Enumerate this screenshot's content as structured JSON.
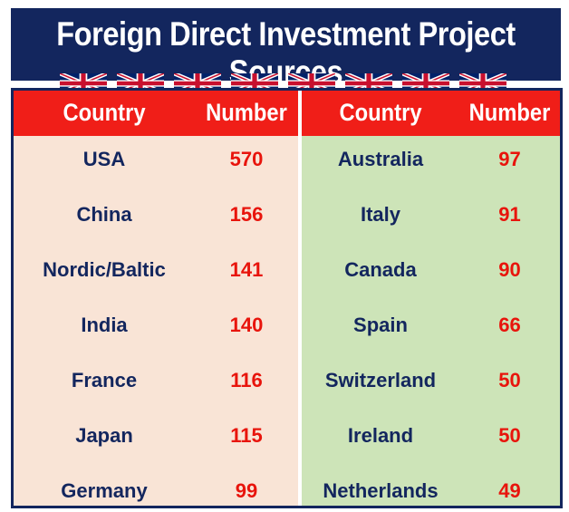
{
  "title": "Foreign Direct Investment Project Sources",
  "headers": {
    "country": "Country",
    "number": "Number"
  },
  "colors": {
    "navy": "#13265e",
    "header_red": "#f01e18",
    "left_panel": "#f9e4d6",
    "right_panel": "#cde4b8",
    "number_red": "#e8140c"
  },
  "icons": {
    "flag": "union-jack-flag-icon",
    "flag_count": 8
  },
  "chart_data": {
    "type": "table",
    "title": "Foreign Direct Investment Project Sources",
    "columns": [
      "Country",
      "Number"
    ],
    "left_rows": [
      {
        "country": "USA",
        "number": 570
      },
      {
        "country": "China",
        "number": 156
      },
      {
        "country": "Nordic/Baltic",
        "number": 141
      },
      {
        "country": "India",
        "number": 140
      },
      {
        "country": "France",
        "number": 116
      },
      {
        "country": "Japan",
        "number": 115
      },
      {
        "country": "Germany",
        "number": 99
      }
    ],
    "right_rows": [
      {
        "country": "Australia",
        "number": 97
      },
      {
        "country": "Italy",
        "number": 91
      },
      {
        "country": "Canada",
        "number": 90
      },
      {
        "country": "Spain",
        "number": 66
      },
      {
        "country": "Switzerland",
        "number": 50
      },
      {
        "country": "Ireland",
        "number": 50
      },
      {
        "country": "Netherlands",
        "number": 49
      }
    ]
  }
}
